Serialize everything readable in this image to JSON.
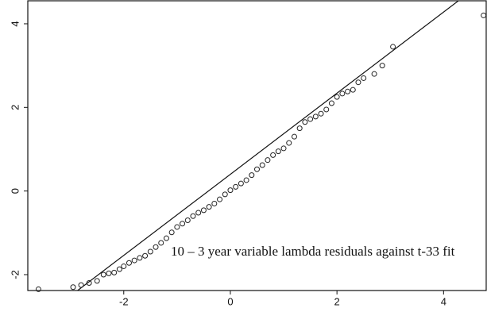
{
  "chart_data": {
    "type": "scatter",
    "annotation": "10 – 3 year variable lambda residuals against t-33 fit",
    "x": [
      -3.6,
      -2.95,
      -2.8,
      -2.65,
      -2.5,
      -2.38,
      -2.28,
      -2.18,
      -2.08,
      -2.0,
      -1.9,
      -1.8,
      -1.7,
      -1.6,
      -1.5,
      -1.4,
      -1.3,
      -1.2,
      -1.1,
      -1.0,
      -0.9,
      -0.8,
      -0.7,
      -0.6,
      -0.5,
      -0.4,
      -0.3,
      -0.2,
      -0.1,
      0.0,
      0.1,
      0.2,
      0.3,
      0.4,
      0.5,
      0.6,
      0.7,
      0.8,
      0.9,
      1.0,
      1.1,
      1.2,
      1.3,
      1.4,
      1.5,
      1.6,
      1.7,
      1.8,
      1.9,
      2.0,
      2.1,
      2.2,
      2.3,
      2.4,
      2.5,
      2.7,
      2.85,
      3.05,
      4.75
    ],
    "y": [
      -2.35,
      -2.3,
      -2.25,
      -2.2,
      -2.15,
      -2.0,
      -1.97,
      -1.95,
      -1.87,
      -1.8,
      -1.72,
      -1.66,
      -1.6,
      -1.55,
      -1.45,
      -1.34,
      -1.24,
      -1.13,
      -0.99,
      -0.86,
      -0.78,
      -0.7,
      -0.6,
      -0.52,
      -0.46,
      -0.38,
      -0.3,
      -0.2,
      -0.08,
      0.02,
      0.1,
      0.18,
      0.26,
      0.38,
      0.52,
      0.62,
      0.74,
      0.86,
      0.95,
      1.02,
      1.15,
      1.3,
      1.5,
      1.65,
      1.72,
      1.78,
      1.85,
      1.95,
      2.1,
      2.25,
      2.33,
      2.38,
      2.42,
      2.6,
      2.7,
      2.8,
      3.0,
      3.45,
      4.2
    ],
    "color": "#222222",
    "reference_line": {
      "slope": 0.97,
      "intercept": 0.4
    },
    "xlim": [
      -3.8,
      4.8
    ],
    "ylim": [
      -2.38,
      4.55
    ],
    "xticks": [
      -2,
      0,
      2,
      4
    ],
    "yticks": [
      -2,
      0,
      2,
      4
    ]
  }
}
